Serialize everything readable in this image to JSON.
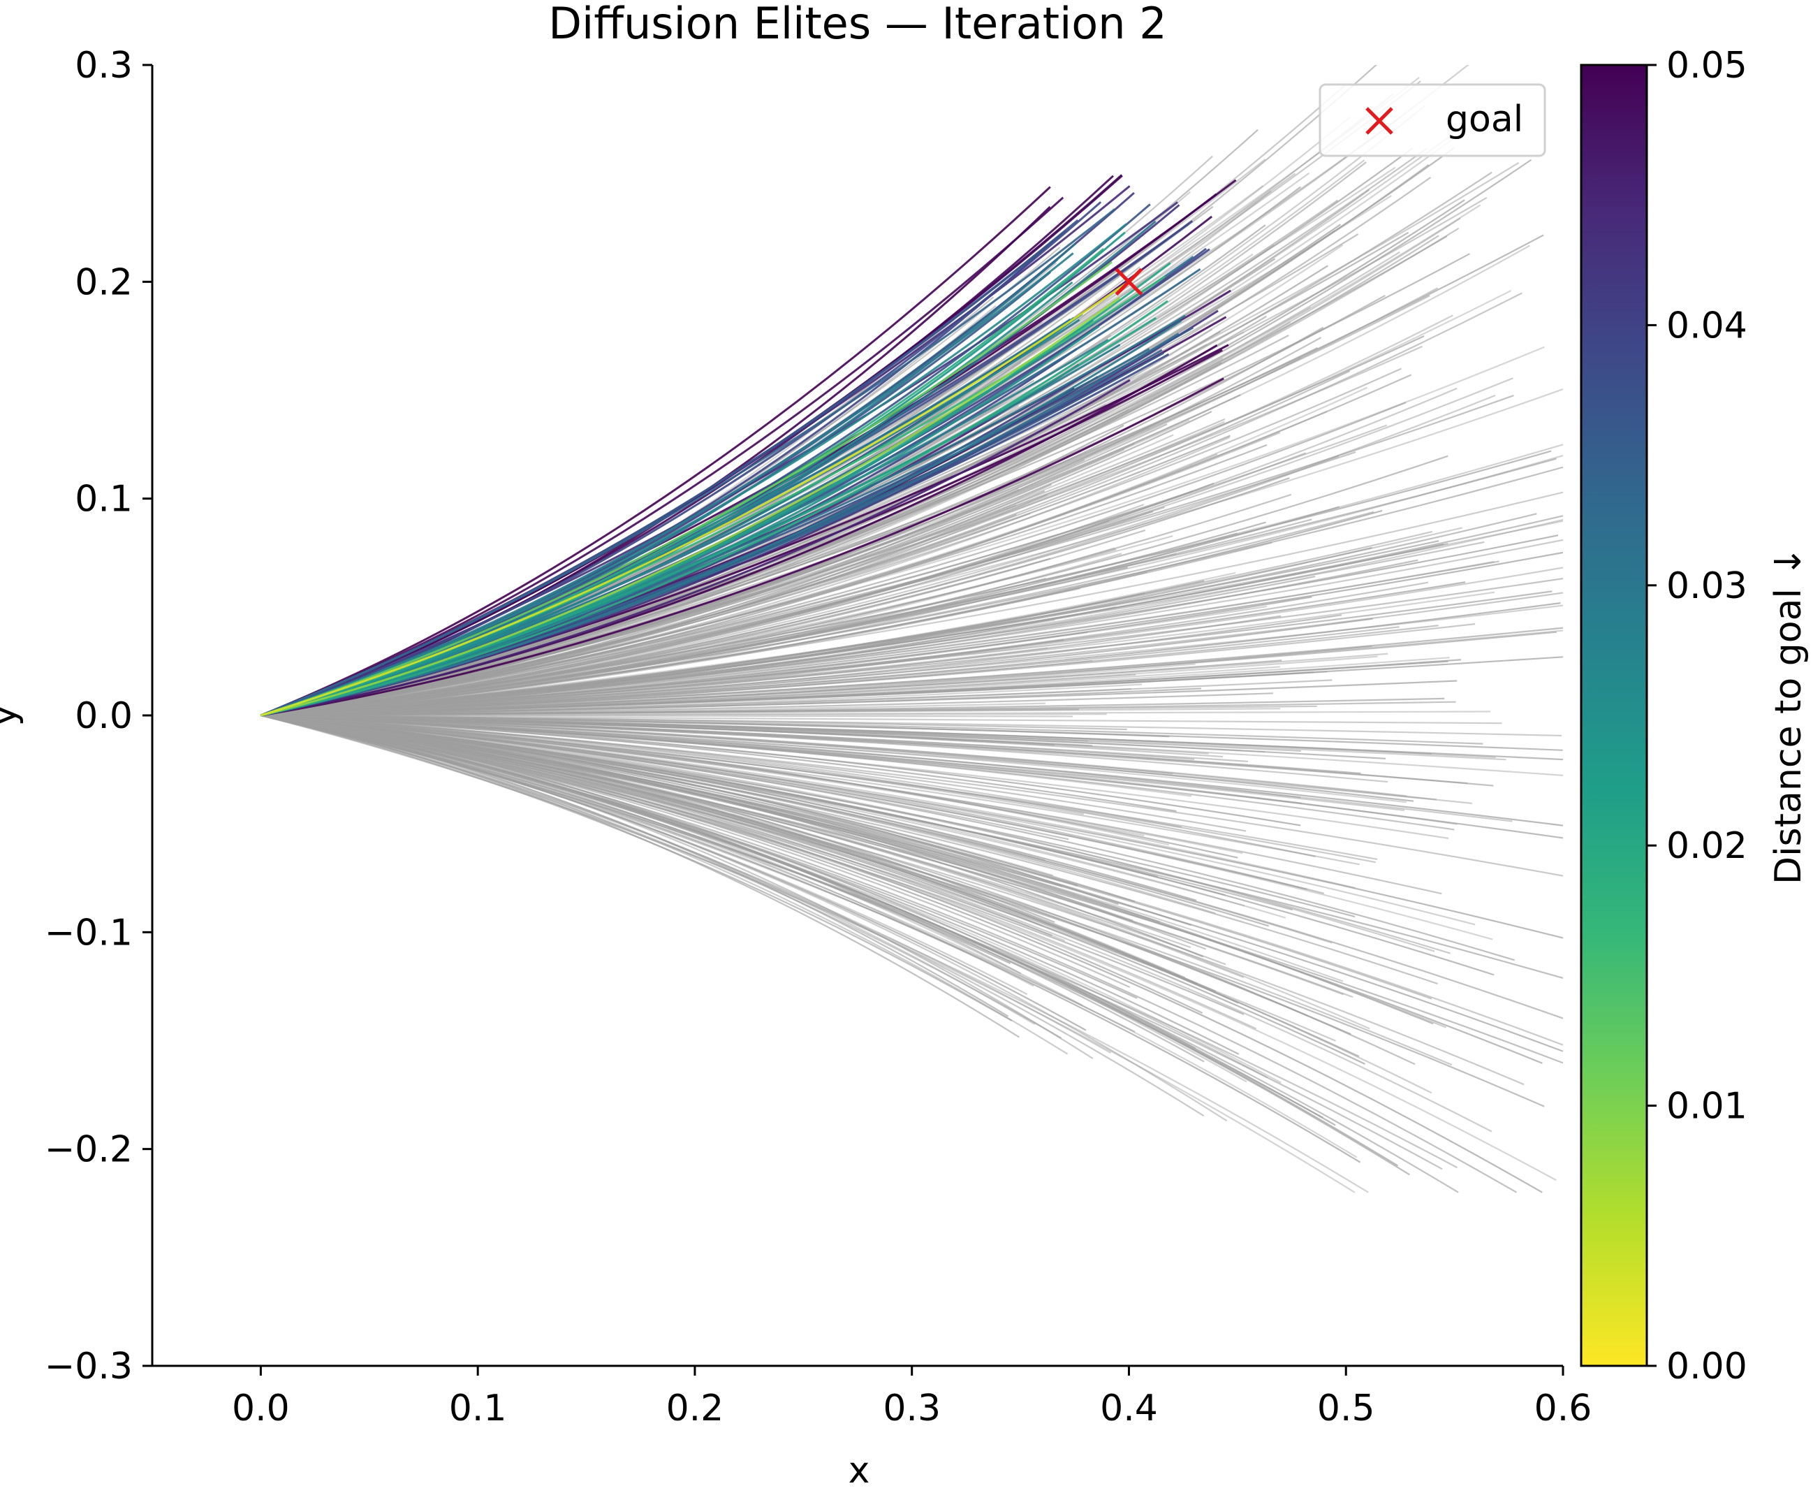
{
  "chart_data": {
    "type": "line",
    "title": "Diffusion Elites — Iteration 2",
    "xlabel": "x",
    "ylabel": "y",
    "xlim": [
      -0.05,
      0.6
    ],
    "ylim": [
      -0.3,
      0.3
    ],
    "x_ticks": [
      "0.0",
      "0.1",
      "0.2",
      "0.3",
      "0.4",
      "0.5",
      "0.6"
    ],
    "y_ticks": [
      "−0.3",
      "−0.2",
      "−0.1",
      "0.0",
      "0.1",
      "0.2",
      "0.3"
    ],
    "grid": false,
    "legend": {
      "position": "top-right",
      "entries": [
        "goal"
      ]
    },
    "goal": {
      "label": "goal",
      "x": 0.4,
      "y": 0.2,
      "marker": "x",
      "color": "#e41a1c"
    },
    "trajectories": {
      "start": [
        0.0,
        0.0
      ],
      "background_count": 420,
      "elite_count": 70,
      "background_color": "#9e9e9e",
      "background_endpoint_x_range": [
        0.29,
        0.6
      ],
      "background_endpoint_y_range": [
        -0.22,
        0.3
      ],
      "elite_endpoint_x_range": [
        0.36,
        0.45
      ],
      "elite_endpoint_y_range": [
        0.15,
        0.25
      ]
    },
    "colorbar": {
      "label": "Distance to goal ↓",
      "min": 0.0,
      "max": 0.05,
      "ticks": [
        "0.00",
        "0.01",
        "0.02",
        "0.03",
        "0.04",
        "0.05"
      ],
      "colormap": "viridis_r",
      "colors": [
        "#fde725",
        "#b5de2b",
        "#6ece58",
        "#35b779",
        "#1f9e89",
        "#26828e",
        "#31688e",
        "#3e4989",
        "#482878",
        "#440154"
      ]
    }
  }
}
